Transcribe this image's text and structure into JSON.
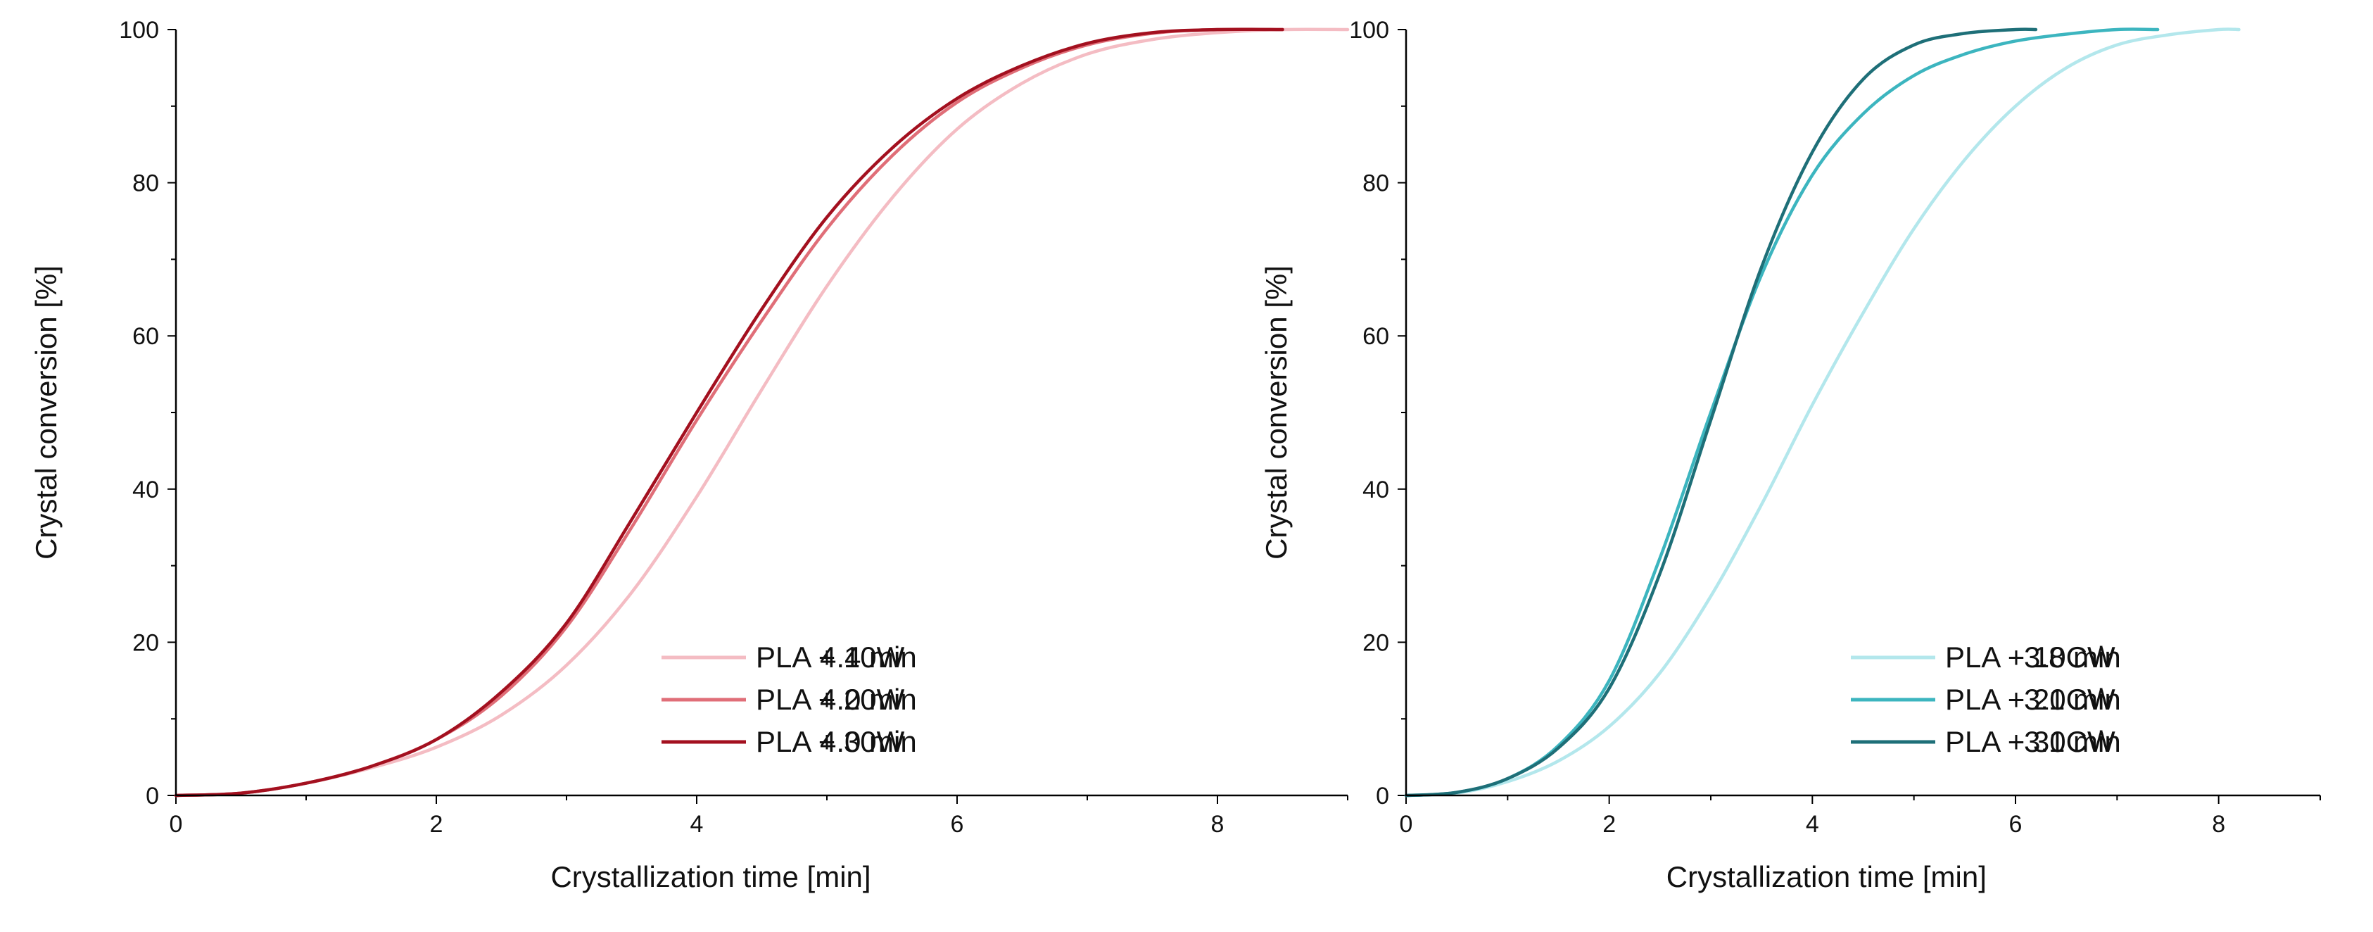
{
  "chart_data": [
    {
      "type": "line",
      "xlabel": "Crystallization time [min]",
      "ylabel": "Crystal conversion [%]",
      "xlim": [
        0,
        9
      ],
      "ylim": [
        0,
        100
      ],
      "xticks": [
        0,
        2,
        4,
        6,
        8
      ],
      "yticks": [
        0,
        20,
        40,
        60,
        80,
        100
      ],
      "legend_position": "bottom-right",
      "series": [
        {
          "name": "PLA + 10W",
          "note": "4.4 min",
          "color": "#f4bcc3",
          "x": [
            0,
            0.5,
            1,
            1.5,
            2,
            2.5,
            3,
            3.5,
            4,
            4.5,
            5,
            5.5,
            6,
            6.5,
            7,
            7.5,
            8,
            8.5,
            9
          ],
          "y": [
            0,
            0.3,
            1.6,
            3.6,
            6.3,
            10.5,
            17,
            26.5,
            39,
            53,
            66.5,
            78,
            87,
            93,
            96.8,
            98.7,
            99.6,
            100,
            100
          ]
        },
        {
          "name": "PLA + 20W",
          "note": "4.0 min",
          "color": "#e06e78",
          "x": [
            0,
            0.5,
            1,
            1.5,
            2,
            2.5,
            3,
            3.5,
            4,
            4.5,
            5,
            5.5,
            6,
            6.5,
            7,
            7.5,
            8,
            8.5
          ],
          "y": [
            0,
            0.3,
            1.6,
            3.8,
            7.3,
            13,
            22,
            35,
            49,
            62,
            74,
            83.5,
            90.5,
            95,
            98,
            99.5,
            100,
            100
          ]
        },
        {
          "name": "PLA + 30W",
          "note": "4.0 min",
          "color": "#a3101f",
          "x": [
            0,
            0.5,
            1,
            1.5,
            2,
            2.5,
            3,
            3.5,
            4,
            4.5,
            5,
            5.5,
            6,
            6.5,
            7,
            7.5,
            8,
            8.5
          ],
          "y": [
            0,
            0.3,
            1.6,
            3.8,
            7.3,
            13.5,
            22.5,
            36,
            50,
            63.5,
            75.5,
            84.5,
            91,
            95.3,
            98.2,
            99.6,
            100,
            100
          ]
        }
      ],
      "legend": [
        {
          "label": "PLA + 10W",
          "value": "4.4 min"
        },
        {
          "label": "PLA + 20W",
          "value": "4.0 min"
        },
        {
          "label": "PLA + 30W",
          "value": "4.0 min"
        }
      ]
    },
    {
      "type": "line",
      "xlabel": "Crystallization time [min]",
      "ylabel": "Crystal conversion [%]",
      "xlim": [
        0,
        9
      ],
      "ylim": [
        0,
        100
      ],
      "xticks": [
        0,
        2,
        4,
        6,
        8
      ],
      "yticks": [
        0,
        20,
        40,
        60,
        80,
        100
      ],
      "legend_position": "bottom-right",
      "series": [
        {
          "name": "PLA + 10CW",
          "note": "3.8 min",
          "color": "#b3e7ec",
          "x": [
            0,
            0.5,
            1,
            1.5,
            2,
            2.5,
            3,
            3.5,
            4,
            4.5,
            5,
            5.5,
            6,
            6.5,
            7,
            7.5,
            8,
            8.2
          ],
          "y": [
            0,
            0.3,
            1.8,
            4.5,
            9,
            16,
            26,
            38,
            51,
            63,
            74,
            83,
            90,
            95,
            98,
            99.3,
            100,
            100
          ]
        },
        {
          "name": "PLA + 20CW",
          "note": "3.1 min",
          "color": "#3cb5bf",
          "x": [
            0,
            0.5,
            1,
            1.5,
            2,
            2.5,
            3,
            3.5,
            4,
            4.5,
            5,
            5.5,
            6,
            6.5,
            7,
            7.4
          ],
          "y": [
            0,
            0.4,
            2.2,
            6.5,
            15,
            31,
            50,
            68,
            81,
            89,
            94,
            96.8,
            98.5,
            99.4,
            100,
            100
          ]
        },
        {
          "name": "PLA + 30CW",
          "note": "3.1 min",
          "color": "#1e6f78",
          "x": [
            0,
            0.5,
            1,
            1.5,
            2,
            2.5,
            3,
            3.5,
            4,
            4.5,
            5,
            5.5,
            6,
            6.2
          ],
          "y": [
            0,
            0.4,
            2.2,
            6.2,
            14,
            29,
            49,
            69,
            84,
            93.5,
            98,
            99.5,
            100,
            100
          ]
        }
      ],
      "legend": [
        {
          "label": "PLA + 10CW",
          "value": "3.8 min"
        },
        {
          "label": "PLA + 20CW",
          "value": "3.1 min"
        },
        {
          "label": "PLA + 30CW",
          "value": "3.1 min"
        }
      ]
    }
  ]
}
